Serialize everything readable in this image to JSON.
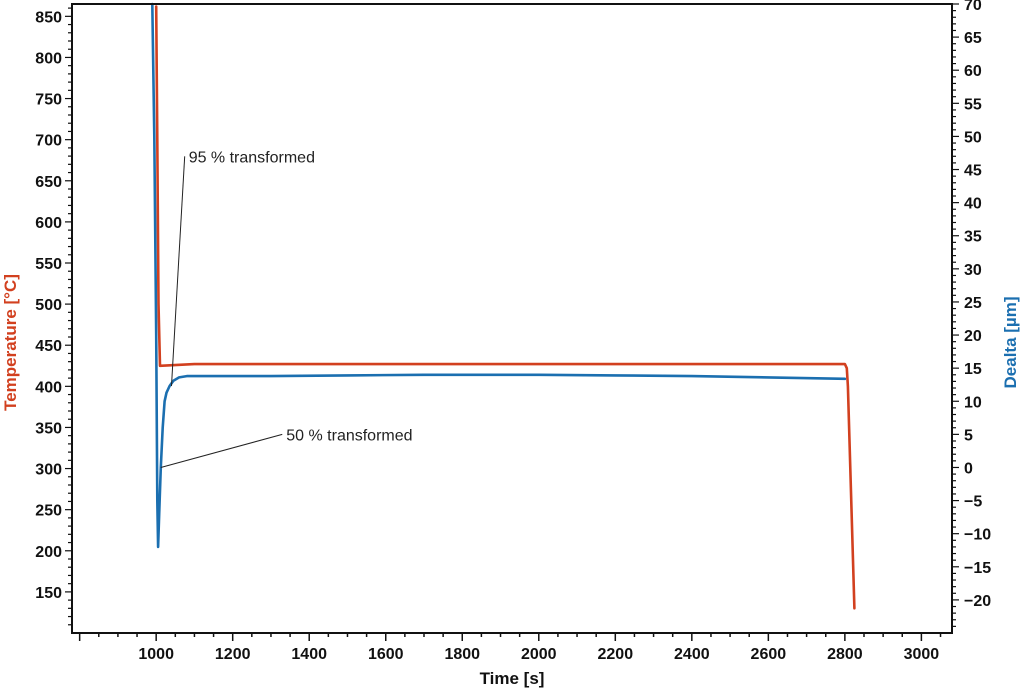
{
  "chart_data": {
    "type": "line",
    "xlabel": "Time [s]",
    "ylabel_left": "Temperature [°C]",
    "ylabel_right": "Dealta [µm]",
    "xlim": [
      780,
      3080
    ],
    "ylim_left": [
      100,
      865
    ],
    "ylim_right": [
      -25,
      70
    ],
    "x_ticks": [
      1000,
      1200,
      1400,
      1600,
      1800,
      2000,
      2200,
      2400,
      2600,
      2800,
      3000
    ],
    "y_left_ticks": [
      150,
      200,
      250,
      300,
      350,
      400,
      450,
      500,
      550,
      600,
      650,
      700,
      750,
      800,
      850
    ],
    "y_right_ticks": [
      -20,
      -15,
      -10,
      -5,
      0,
      5,
      10,
      15,
      20,
      25,
      30,
      35,
      40,
      45,
      50,
      55,
      60,
      65,
      70
    ],
    "grid": false,
    "colors": {
      "temperature": "#d2401f",
      "delta": "#1b6fb0",
      "axis": "#111111"
    },
    "series": [
      {
        "key": "temperature",
        "axis": "left",
        "x": [
          1000,
          1003,
          1006,
          1010,
          1100,
          1500,
          2000,
          2500,
          2800,
          2805,
          2808,
          2825
        ],
        "values": [
          862,
          700,
          500,
          425,
          427,
          427,
          427,
          427,
          427,
          422,
          400,
          130
        ]
      },
      {
        "key": "delta",
        "axis": "right",
        "x": [
          990,
          995,
          1000,
          1003,
          1005,
          1008,
          1012,
          1017,
          1022,
          1027,
          1035,
          1045,
          1060,
          1080,
          1100,
          1300,
          1500,
          1700,
          2000,
          2200,
          2400,
          2600,
          2800
        ],
        "values": [
          70,
          50,
          20,
          -5,
          -12,
          -7,
          0,
          6,
          10,
          11.3,
          12.3,
          13.1,
          13.6,
          13.8,
          13.8,
          13.8,
          13.9,
          14.0,
          14.0,
          13.9,
          13.8,
          13.6,
          13.4
        ]
      }
    ],
    "annotations": [
      {
        "text": "95 % transformed",
        "point": [
          1040,
          12.3
        ],
        "label_at": [
          1085,
          47
        ]
      },
      {
        "text": "50 % transformed",
        "point": [
          1012,
          0
        ],
        "label_at": [
          1340,
          5
        ]
      }
    ]
  }
}
